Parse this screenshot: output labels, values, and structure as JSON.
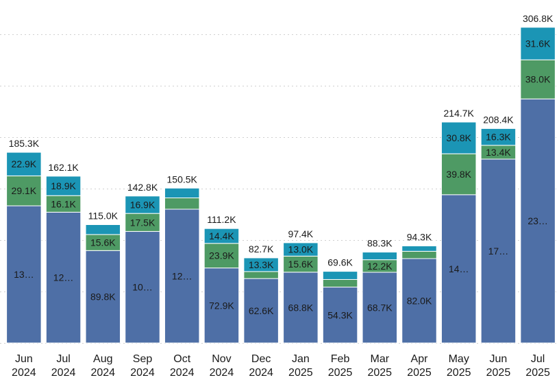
{
  "chart_data": {
    "type": "bar",
    "stacked": true,
    "categories": [
      [
        "Jun",
        "2024"
      ],
      [
        "Jul",
        "2024"
      ],
      [
        "Aug",
        "2024"
      ],
      [
        "Sep",
        "2024"
      ],
      [
        "Oct",
        "2024"
      ],
      [
        "Nov",
        "2024"
      ],
      [
        "Dec",
        "2024"
      ],
      [
        "Jan",
        "2025"
      ],
      [
        "Feb",
        "2025"
      ],
      [
        "Mar",
        "2025"
      ],
      [
        "Apr",
        "2025"
      ],
      [
        "May",
        "2025"
      ],
      [
        "Jun",
        "2025"
      ],
      [
        "Jul",
        "2025"
      ]
    ],
    "series": [
      {
        "color": "#4e6fa6",
        "values": [
          133300,
          127100,
          89800,
          108400,
          130000,
          72900,
          62600,
          68800,
          54300,
          68700,
          82000,
          144100,
          178700,
          237200
        ],
        "labels": [
          "13…",
          "12…",
          "89.8K",
          "10…",
          "12…",
          "72.9K",
          "62.6K",
          "68.8K",
          "54.3K",
          "68.7K",
          "82.0K",
          "14…",
          "17…",
          "23…"
        ]
      },
      {
        "color": "#4e9a64",
        "values": [
          29100,
          16100,
          15600,
          17500,
          11000,
          23900,
          6800,
          15600,
          7400,
          12200,
          7100,
          39800,
          13400,
          38000
        ],
        "labels": [
          "29.1K",
          "16.1K",
          "15.6K",
          "17.5K",
          "",
          "23.9K",
          "",
          "15.6K",
          "",
          "12.2K",
          "",
          "39.8K",
          "13.4K",
          "38.0K"
        ]
      },
      {
        "color": "#1b95b5",
        "values": [
          22900,
          18900,
          9600,
          16900,
          9500,
          14400,
          13300,
          13000,
          7900,
          7400,
          5200,
          30800,
          16300,
          31600
        ],
        "labels": [
          "22.9K",
          "18.9K",
          "",
          "16.9K",
          "",
          "14.4K",
          "13.3K",
          "13.0K",
          "",
          "",
          "",
          "30.8K",
          "16.3K",
          "31.6K"
        ]
      }
    ],
    "totals": [
      "185.3K",
      "162.1K",
      "115.0K",
      "142.8K",
      "150.5K",
      "111.2K",
      "82.7K",
      "97.4K",
      "69.6K",
      "88.3K",
      "94.3K",
      "214.7K",
      "208.4K",
      "306.8K"
    ],
    "ylim": [
      0,
      320000
    ],
    "gridlines": [
      0,
      50000,
      100000,
      150000,
      200000,
      250000,
      300000
    ],
    "grid": true,
    "grid_style": "dotted",
    "legend": "none",
    "y_axis_labels": false
  }
}
